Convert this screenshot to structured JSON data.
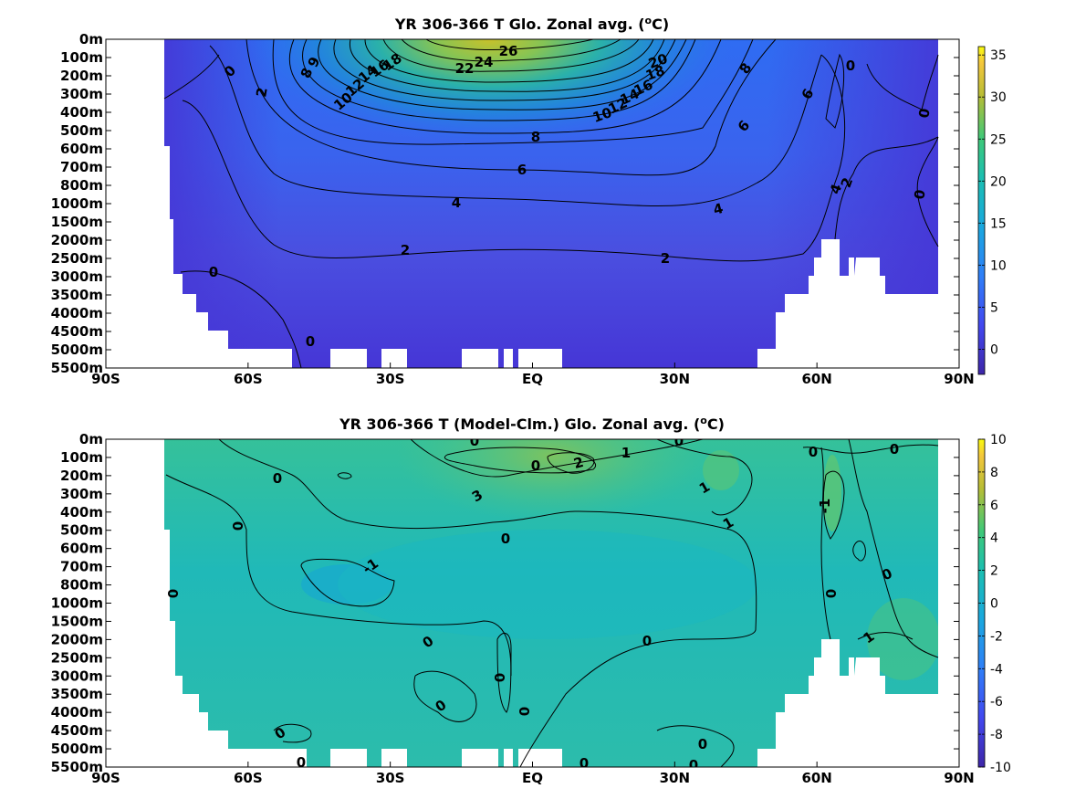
{
  "chart_data": [
    {
      "type": "heatmap",
      "title": "YR 306-366 T Glo. Zonal avg. (°C)",
      "title_main": "YR 306-366 T Glo. Zonal avg. (",
      "title_sup": "o",
      "title_end": "C)",
      "x_ticks": [
        "90S",
        "60S",
        "30S",
        "EQ",
        "30N",
        "60N",
        "90N"
      ],
      "y_ticks": [
        "0m",
        "100m",
        "200m",
        "300m",
        "400m",
        "500m",
        "600m",
        "700m",
        "800m",
        "1000m",
        "1500m",
        "2000m",
        "2500m",
        "3000m",
        "3500m",
        "4000m",
        "4500m",
        "5000m",
        "5500m"
      ],
      "colorbar": {
        "ticks": [
          "35",
          "30",
          "25",
          "20",
          "15",
          "10",
          "5",
          "0"
        ],
        "range": [
          -3,
          36
        ],
        "colormap": "parula"
      },
      "grid": false,
      "contour_labels": [
        "26",
        "24",
        "22",
        "20",
        "18",
        "18",
        "16",
        "16",
        "14",
        "14",
        "12",
        "12",
        "10",
        "10",
        "9",
        "8",
        "8",
        "8",
        "6",
        "6",
        "6",
        "4",
        "4",
        "4",
        "2",
        "2",
        "2",
        "2",
        "0",
        "0",
        "0",
        "0",
        "0",
        "0"
      ]
    },
    {
      "type": "heatmap",
      "title": "YR 306-366 T (Model-Clm.) Glo. Zonal avg. (°C)",
      "title_main": "YR 306-366 T (Model-Clm.) Glo. Zonal avg. (",
      "title_sup": "o",
      "title_end": "C)",
      "x_ticks": [
        "90S",
        "60S",
        "30S",
        "EQ",
        "30N",
        "60N",
        "90N"
      ],
      "y_ticks": [
        "0m",
        "100m",
        "200m",
        "300m",
        "400m",
        "500m",
        "600m",
        "700m",
        "800m",
        "1000m",
        "1500m",
        "2000m",
        "2500m",
        "3000m",
        "3500m",
        "4000m",
        "4500m",
        "5000m",
        "5500m"
      ],
      "colorbar": {
        "ticks": [
          "10",
          "8",
          "6",
          "4",
          "2",
          "0",
          "-2",
          "-4",
          "-6",
          "-8",
          "-10"
        ],
        "range": [
          -10,
          10
        ],
        "colormap": "parula"
      },
      "grid": false,
      "contour_labels": [
        "0",
        "0",
        "1",
        "2",
        "3",
        "0",
        "0",
        "1",
        "0",
        "1",
        "0",
        "-1",
        "0",
        "0",
        "0",
        "0",
        "0",
        "0",
        "0",
        "0",
        "-1",
        "1",
        "0",
        "0",
        "0",
        "0",
        "0",
        "0",
        "0"
      ]
    }
  ]
}
